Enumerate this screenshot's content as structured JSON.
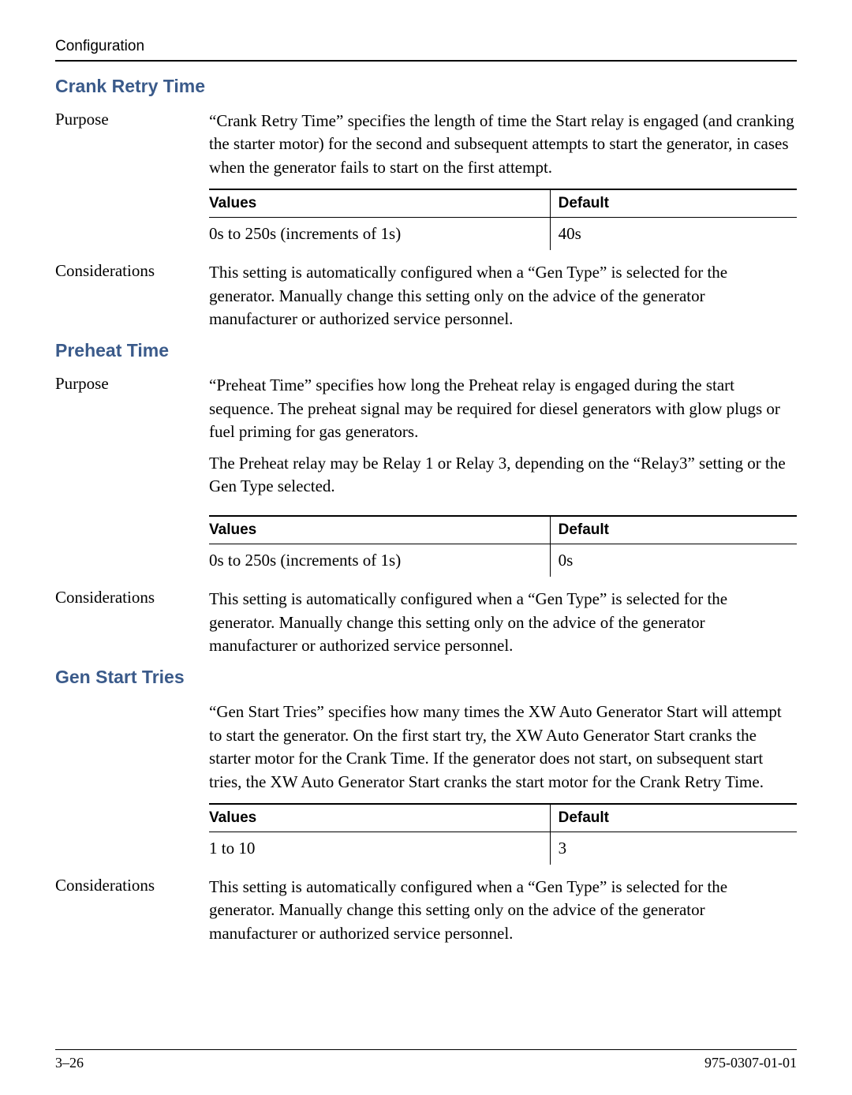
{
  "header": {
    "section": "Configuration"
  },
  "sections": {
    "crankRetryTime": {
      "title": "Crank Retry Time",
      "purposeLabel": "Purpose",
      "purposeText": "“Crank Retry Time” specifies the length of time the Start relay is engaged (and cranking the starter motor) for the second and subsequent attempts to start the generator, in cases when the generator fails to start on the first attempt.",
      "table": {
        "headers": {
          "values": "Values",
          "default": "Default"
        },
        "row": {
          "values": "0s to 250s (increments of 1s)",
          "default": "40s"
        }
      },
      "considerationsLabel": "Considerations",
      "considerationsText": "This setting is automatically configured when a “Gen Type” is selected for the generator. Manually change this setting only on the advice of the generator manufacturer or authorized service personnel."
    },
    "preheatTime": {
      "title": "Preheat Time",
      "purposeLabel": "Purpose",
      "purposeText1": "“Preheat Time” specifies how long the Preheat relay is engaged during the start sequence. The preheat signal may be required for diesel generators with glow plugs or fuel priming for gas generators.",
      "purposeText2": "The Preheat relay may be Relay 1 or Relay 3, depending on the “Relay3” setting or the Gen Type selected.",
      "table": {
        "headers": {
          "values": "Values",
          "default": "Default"
        },
        "row": {
          "values": "0s to 250s (increments of 1s)",
          "default": "0s"
        }
      },
      "considerationsLabel": "Considerations",
      "considerationsText": "This setting is automatically configured when a “Gen Type” is selected for the generator. Manually change this setting only on the advice of the generator manufacturer or authorized service personnel."
    },
    "genStartTries": {
      "title": "Gen Start Tries",
      "bodyText": "“Gen Start Tries” specifies how many times the XW Auto Generator Start will attempt to start the generator. On the first start try, the XW Auto Generator Start cranks the starter motor for the Crank Time. If the generator does not start, on subsequent start tries, the XW Auto Generator Start cranks the start motor for the Crank Retry Time.",
      "table": {
        "headers": {
          "values": "Values",
          "default": "Default"
        },
        "row": {
          "values": "1 to 10",
          "default": "3"
        }
      },
      "considerationsLabel": "Considerations",
      "considerationsText": "This setting is automatically configured when a “Gen Type” is selected for the generator. Manually change this setting only on the advice of the generator manufacturer or authorized service personnel."
    }
  },
  "footer": {
    "pageNumber": "3–26",
    "docNumber": "975-0307-01-01"
  }
}
